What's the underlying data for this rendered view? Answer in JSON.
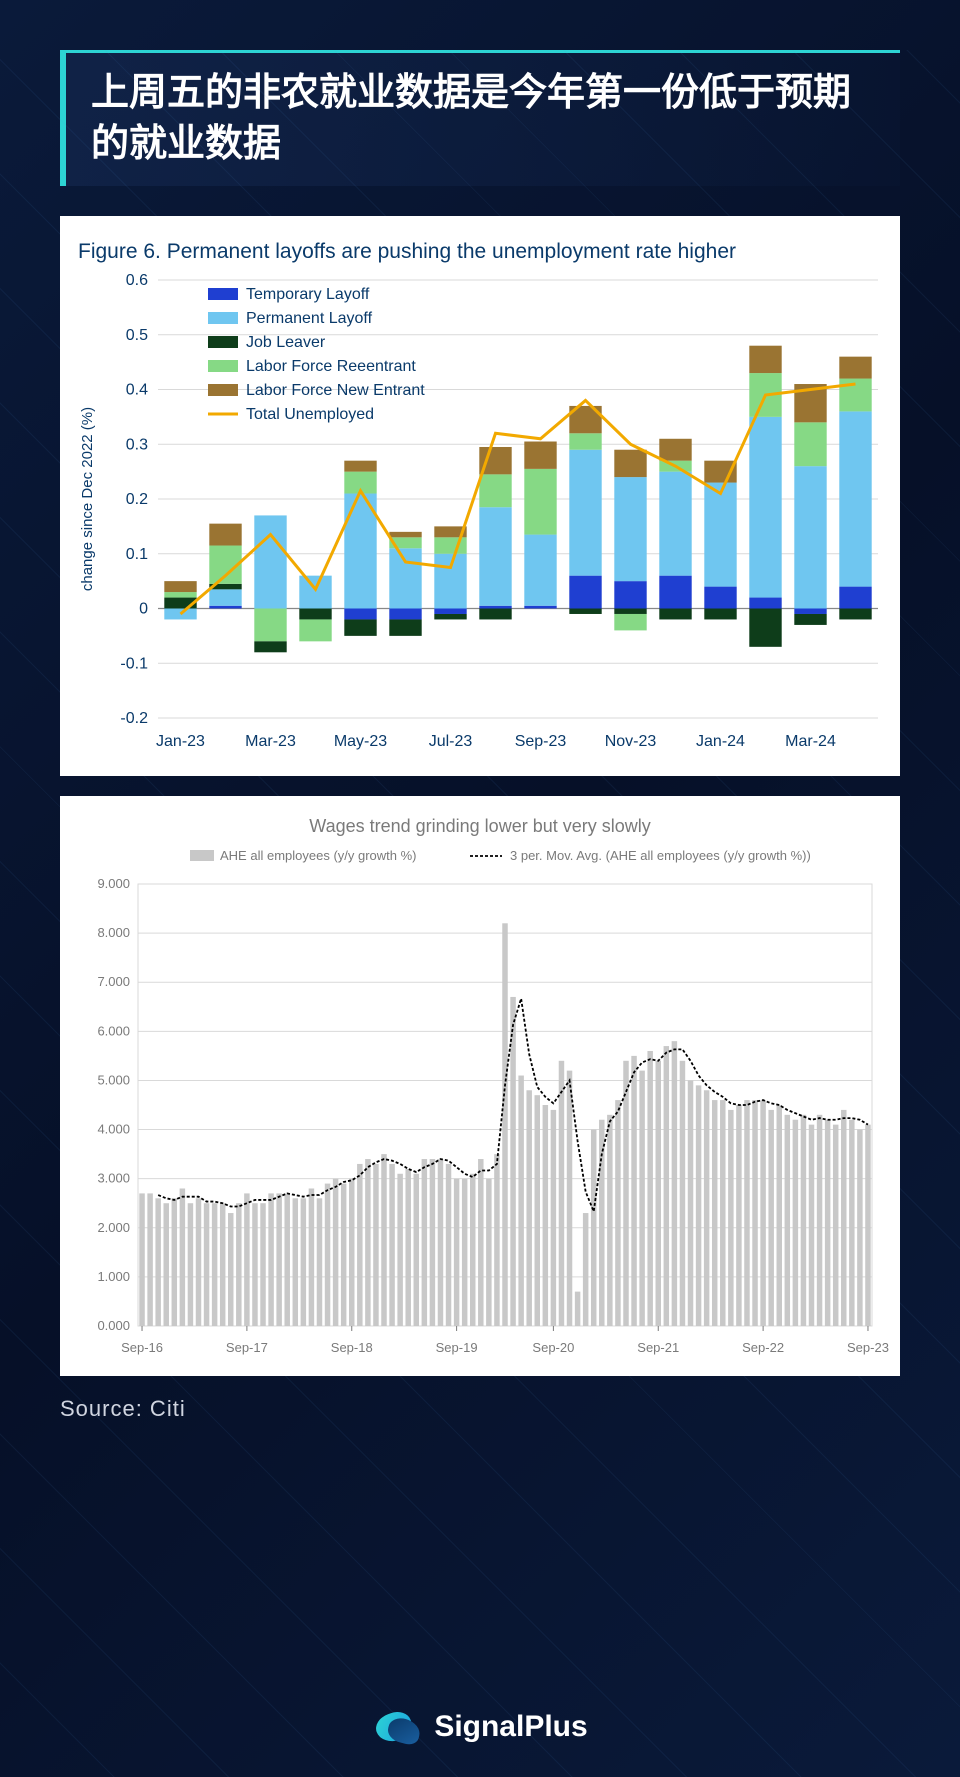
{
  "header": {
    "title": "上周五的非农就业数据是今年第一份低于预期的就业数据"
  },
  "chart1": {
    "type": "stacked-bar-with-line",
    "title": "Figure 6. Permanent layoffs are pushing the unemployment rate higher",
    "title_fontsize": 21,
    "title_color": "#0a3a6a",
    "ylabel": "change since Dec 2022 (%)",
    "label_fontsize": 15,
    "label_color": "#0a3a6a",
    "ylim": [
      -0.2,
      0.6
    ],
    "ytick_step": 0.1,
    "x_labels": [
      "Jan-23",
      "",
      "Mar-23",
      "",
      "May-23",
      "",
      "Jul-23",
      "",
      "Sep-23",
      "",
      "Nov-23",
      "",
      "Jan-24",
      "",
      "Mar-24",
      ""
    ],
    "tick_fontsize": 16,
    "tick_color": "#0a3a6a",
    "grid_color": "#d9d9d9",
    "background_color": "#ffffff",
    "bar_width": 0.72,
    "series": [
      {
        "name": "Temporary Layoff",
        "color": "#1f3fd1"
      },
      {
        "name": "Permanent Layoff",
        "color": "#6fc6f0"
      },
      {
        "name": "Job Leaver",
        "color": "#0e3d1a"
      },
      {
        "name": "Labor Force Reeentrant",
        "color": "#86d985"
      },
      {
        "name": "Labor Force New Entrant",
        "color": "#9a7432"
      }
    ],
    "line_series": {
      "name": "Total Unemployed",
      "color": "#f2a900",
      "width": 3
    },
    "stacks": [
      {
        "pos": [
          [
            "TL",
            0.0
          ],
          [
            "JL",
            0.02
          ],
          [
            "RE",
            0.01
          ],
          [
            "NE",
            0.02
          ]
        ],
        "neg": [
          [
            "PL",
            -0.02
          ]
        ]
      },
      {
        "pos": [
          [
            "TL",
            0.005
          ],
          [
            "PL",
            0.03
          ],
          [
            "JL",
            0.01
          ],
          [
            "RE",
            0.07
          ],
          [
            "NE",
            0.04
          ]
        ],
        "neg": []
      },
      {
        "pos": [
          [
            "PL",
            0.17
          ]
        ],
        "neg": [
          [
            "RE",
            -0.06
          ],
          [
            "JL",
            -0.02
          ]
        ]
      },
      {
        "pos": [
          [
            "PL",
            0.06
          ]
        ],
        "neg": [
          [
            "JL",
            -0.02
          ],
          [
            "RE",
            -0.04
          ]
        ]
      },
      {
        "pos": [
          [
            "PL",
            0.21
          ],
          [
            "RE",
            0.04
          ],
          [
            "NE",
            0.02
          ]
        ],
        "neg": [
          [
            "TL",
            -0.02
          ],
          [
            "JL",
            -0.03
          ]
        ]
      },
      {
        "pos": [
          [
            "PL",
            0.11
          ],
          [
            "RE",
            0.02
          ],
          [
            "NE",
            0.01
          ]
        ],
        "neg": [
          [
            "TL",
            -0.02
          ],
          [
            "JL",
            -0.03
          ]
        ]
      },
      {
        "pos": [
          [
            "PL",
            0.1
          ],
          [
            "RE",
            0.03
          ],
          [
            "NE",
            0.02
          ]
        ],
        "neg": [
          [
            "TL",
            -0.01
          ],
          [
            "JL",
            -0.01
          ]
        ]
      },
      {
        "pos": [
          [
            "TL",
            0.005
          ],
          [
            "PL",
            0.18
          ],
          [
            "RE",
            0.06
          ],
          [
            "NE",
            0.05
          ]
        ],
        "neg": [
          [
            "JL",
            -0.02
          ]
        ]
      },
      {
        "pos": [
          [
            "TL",
            0.005
          ],
          [
            "PL",
            0.13
          ],
          [
            "RE",
            0.12
          ],
          [
            "NE",
            0.05
          ]
        ],
        "neg": []
      },
      {
        "pos": [
          [
            "TL",
            0.06
          ],
          [
            "PL",
            0.23
          ],
          [
            "RE",
            0.03
          ],
          [
            "NE",
            0.05
          ]
        ],
        "neg": [
          [
            "JL",
            -0.01
          ]
        ]
      },
      {
        "pos": [
          [
            "TL",
            0.05
          ],
          [
            "PL",
            0.19
          ],
          [
            "NE",
            0.05
          ]
        ],
        "neg": [
          [
            "JL",
            -0.01
          ],
          [
            "RE",
            -0.03
          ]
        ]
      },
      {
        "pos": [
          [
            "TL",
            0.06
          ],
          [
            "PL",
            0.19
          ],
          [
            "RE",
            0.02
          ],
          [
            "NE",
            0.04
          ]
        ],
        "neg": [
          [
            "JL",
            -0.02
          ]
        ]
      },
      {
        "pos": [
          [
            "TL",
            0.04
          ],
          [
            "PL",
            0.19
          ],
          [
            "NE",
            0.04
          ]
        ],
        "neg": [
          [
            "JL",
            -0.02
          ]
        ]
      },
      {
        "pos": [
          [
            "TL",
            0.02
          ],
          [
            "PL",
            0.33
          ],
          [
            "RE",
            0.08
          ],
          [
            "NE",
            0.05
          ]
        ],
        "neg": [
          [
            "JL",
            -0.07
          ]
        ]
      },
      {
        "pos": [
          [
            "PL",
            0.26
          ],
          [
            "RE",
            0.08
          ],
          [
            "NE",
            0.07
          ]
        ],
        "neg": [
          [
            "TL",
            -0.01
          ],
          [
            "JL",
            -0.02
          ]
        ]
      },
      {
        "pos": [
          [
            "TL",
            0.04
          ],
          [
            "PL",
            0.32
          ],
          [
            "RE",
            0.06
          ],
          [
            "NE",
            0.04
          ]
        ],
        "neg": [
          [
            "JL",
            -0.02
          ]
        ]
      }
    ],
    "line_values": [
      -0.01,
      0.06,
      0.135,
      0.035,
      0.215,
      0.085,
      0.075,
      0.32,
      0.31,
      0.38,
      0.3,
      0.26,
      0.21,
      0.39,
      0.4,
      0.41
    ]
  },
  "chart2": {
    "type": "bar-with-moving-average",
    "title": "Wages trend grinding lower but very slowly",
    "title_fontsize": 18,
    "title_color": "#7a7a7a",
    "legend": {
      "bar": "AHE all employees (y/y growth %)",
      "line": "3 per. Mov. Avg. (AHE all employees (y/y growth %))",
      "fontsize": 13,
      "color": "#7a7a7a"
    },
    "ylim": [
      0,
      9
    ],
    "ytick_step": 1,
    "ytick_format": "#.000",
    "x_major_labels": [
      "Sep-16",
      "Sep-17",
      "Sep-18",
      "Sep-19",
      "Sep-20",
      "Sep-21",
      "Sep-22",
      "Sep-23"
    ],
    "tick_fontsize": 13,
    "tick_color": "#7a7a7a",
    "grid_color": "#d9d9d9",
    "background_color": "#ffffff",
    "bar_color": "#c8c8c8",
    "line_color": "#000000",
    "line_dash": "3,2",
    "line_width": 1.8,
    "values": [
      2.7,
      2.7,
      2.6,
      2.5,
      2.6,
      2.8,
      2.5,
      2.6,
      2.5,
      2.5,
      2.5,
      2.3,
      2.5,
      2.7,
      2.5,
      2.5,
      2.7,
      2.7,
      2.7,
      2.6,
      2.6,
      2.8,
      2.6,
      2.9,
      3.0,
      2.9,
      3.0,
      3.3,
      3.4,
      3.3,
      3.5,
      3.3,
      3.1,
      3.2,
      3.1,
      3.4,
      3.4,
      3.4,
      3.3,
      3.0,
      3.0,
      3.1,
      3.4,
      3.0,
      3.5,
      8.2,
      6.7,
      5.1,
      4.8,
      4.7,
      4.5,
      4.4,
      5.4,
      5.2,
      0.7,
      2.3,
      4.0,
      4.2,
      4.3,
      4.6,
      5.4,
      5.5,
      5.2,
      5.6,
      5.4,
      5.7,
      5.8,
      5.4,
      5.0,
      4.9,
      4.8,
      4.6,
      4.6,
      4.4,
      4.5,
      4.6,
      4.6,
      4.6,
      4.4,
      4.5,
      4.3,
      4.2,
      4.3,
      4.1,
      4.3,
      4.2,
      4.1,
      4.4,
      4.2,
      4.0,
      4.1
    ]
  },
  "source": {
    "label": "Source: Citi"
  },
  "footer": {
    "brand": "SignalPlus"
  }
}
